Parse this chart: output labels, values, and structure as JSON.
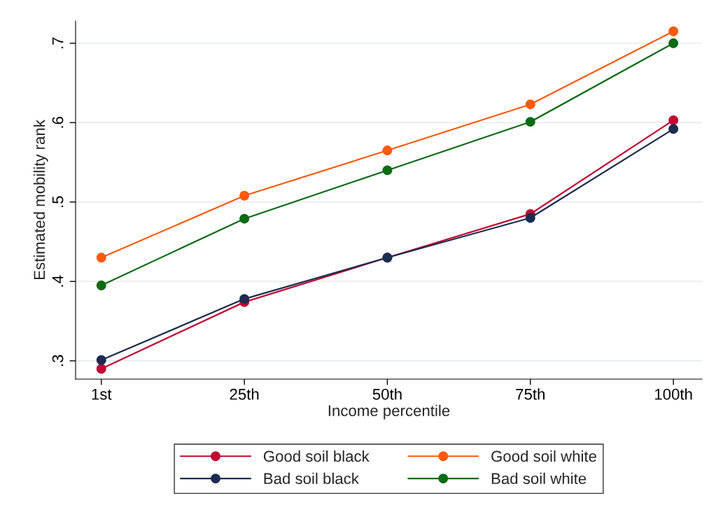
{
  "chart_data": {
    "type": "line",
    "xlabel": "Income percentile",
    "ylabel": "Estimated mobility rank",
    "categories": [
      "1st",
      "25th",
      "50th",
      "75th",
      "100th"
    ],
    "series": [
      {
        "name": "Good soil black",
        "color": "#c10534",
        "values": [
          0.29,
          0.374,
          0.43,
          0.485,
          0.603
        ]
      },
      {
        "name": "Bad soil black",
        "color": "#1a2c4f",
        "values": [
          0.301,
          0.378,
          0.43,
          0.48,
          0.592
        ]
      },
      {
        "name": "Good soil white",
        "color": "#ff5a0e",
        "values": [
          0.43,
          0.508,
          0.565,
          0.623,
          0.715
        ]
      },
      {
        "name": "Bad soil white",
        "color": "#0c6b15",
        "values": [
          0.395,
          0.479,
          0.54,
          0.601,
          0.7
        ]
      }
    ],
    "ylim": [
      0.277,
      0.728
    ],
    "yticks": [
      {
        "value": 0.3,
        "label": ".3"
      },
      {
        "value": 0.4,
        "label": ".4"
      },
      {
        "value": 0.5,
        "label": ".5"
      },
      {
        "value": 0.6,
        "label": ".6"
      },
      {
        "value": 0.7,
        "label": ".7"
      }
    ],
    "grid": "y",
    "legend": "bottom",
    "marker": "circle",
    "line_style": "solid"
  }
}
